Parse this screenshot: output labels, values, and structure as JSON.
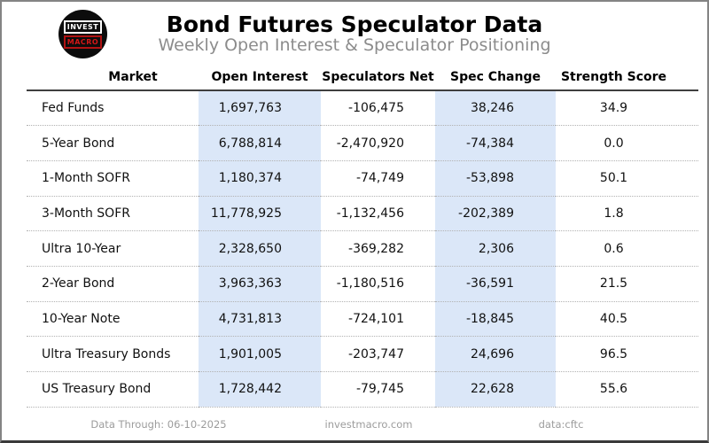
{
  "header": {
    "logo": {
      "line1": "INVEST",
      "line2": "MACRO"
    },
    "title": "Bond Futures Speculator Data",
    "subtitle": "Weekly Open Interest & Speculator Positioning"
  },
  "table": {
    "columns": {
      "market": "Market",
      "open_interest": "Open Interest",
      "speculators_net": "Speculators Net",
      "spec_change": "Spec Change",
      "strength_score": "Strength Score"
    },
    "highlight_color": "#dbe7f8",
    "rows": [
      {
        "market": "Fed Funds",
        "open_interest": "1,697,763",
        "speculators_net": "-106,475",
        "spec_change": "38,246",
        "strength_score": "34.9"
      },
      {
        "market": "5-Year Bond",
        "open_interest": "6,788,814",
        "speculators_net": "-2,470,920",
        "spec_change": "-74,384",
        "strength_score": "0.0"
      },
      {
        "market": "1-Month SOFR",
        "open_interest": "1,180,374",
        "speculators_net": "-74,749",
        "spec_change": "-53,898",
        "strength_score": "50.1"
      },
      {
        "market": "3-Month SOFR",
        "open_interest": "11,778,925",
        "speculators_net": "-1,132,456",
        "spec_change": "-202,389",
        "strength_score": "1.8"
      },
      {
        "market": "Ultra 10-Year",
        "open_interest": "2,328,650",
        "speculators_net": "-369,282",
        "spec_change": "2,306",
        "strength_score": "0.6"
      },
      {
        "market": "2-Year Bond",
        "open_interest": "3,963,363",
        "speculators_net": "-1,180,516",
        "spec_change": "-36,591",
        "strength_score": "21.5"
      },
      {
        "market": "10-Year Note",
        "open_interest": "4,731,813",
        "speculators_net": "-724,101",
        "spec_change": "-18,845",
        "strength_score": "40.5"
      },
      {
        "market": "Ultra Treasury Bonds",
        "open_interest": "1,901,005",
        "speculators_net": "-203,747",
        "spec_change": "24,696",
        "strength_score": "96.5"
      },
      {
        "market": "US Treasury Bond",
        "open_interest": "1,728,442",
        "speculators_net": "-79,745",
        "spec_change": "22,628",
        "strength_score": "55.6"
      }
    ]
  },
  "footer": {
    "data_through": "Data Through: 06-10-2025",
    "website": "investmacro.com",
    "source": "data:cftc"
  },
  "chart_data": {
    "type": "table",
    "title": "Bond Futures Speculator Data",
    "subtitle": "Weekly Open Interest & Speculator Positioning",
    "columns": [
      "Market",
      "Open Interest",
      "Speculators Net",
      "Spec Change",
      "Strength Score"
    ],
    "rows": [
      [
        "Fed Funds",
        1697763,
        -106475,
        38246,
        34.9
      ],
      [
        "5-Year Bond",
        6788814,
        -2470920,
        -74384,
        0.0
      ],
      [
        "1-Month SOFR",
        1180374,
        -74749,
        -53898,
        50.1
      ],
      [
        "3-Month SOFR",
        11778925,
        -1132456,
        -202389,
        1.8
      ],
      [
        "Ultra 10-Year",
        2328650,
        -369282,
        2306,
        0.6
      ],
      [
        "2-Year Bond",
        3963363,
        -1180516,
        -36591,
        21.5
      ],
      [
        "10-Year Note",
        4731813,
        -724101,
        -18845,
        40.5
      ],
      [
        "Ultra Treasury Bonds",
        1901005,
        -203747,
        24696,
        96.5
      ],
      [
        "US Treasury Bond",
        1728442,
        -79745,
        22628,
        55.6
      ]
    ],
    "highlighted_columns": [
      "Open Interest",
      "Spec Change"
    ],
    "footnotes": [
      "Data Through: 06-10-2025",
      "investmacro.com",
      "data:cftc"
    ]
  }
}
